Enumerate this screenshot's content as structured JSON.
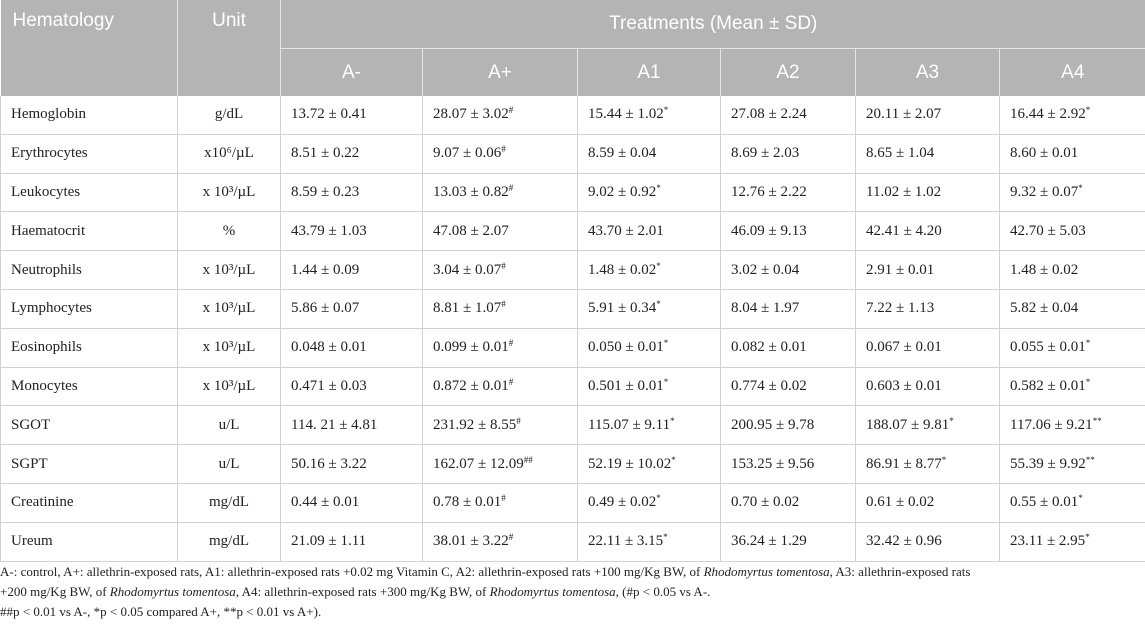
{
  "table": {
    "header": {
      "hematology": "Hematology",
      "unit": "Unit",
      "treatments": "Treatments (Mean ± SD)",
      "groups": [
        "A-",
        "A+",
        "A1",
        "A2",
        "A3",
        "A4"
      ]
    },
    "rows": [
      {
        "name": "Hemoglobin",
        "unit": "g/dL",
        "values": [
          {
            "v": "13.72 ± 0.41",
            "s": ""
          },
          {
            "v": "28.07 ± 3.02",
            "s": "#"
          },
          {
            "v": "15.44 ± 1.02",
            "s": "*"
          },
          {
            "v": "27.08 ± 2.24",
            "s": ""
          },
          {
            "v": "20.11 ± 2.07",
            "s": ""
          },
          {
            "v": "16.44 ± 2.92",
            "s": "*"
          }
        ]
      },
      {
        "name": "Erythrocytes",
        "unit": "x10⁶/µL",
        "values": [
          {
            "v": "8.51 ± 0.22",
            "s": ""
          },
          {
            "v": "9.07 ± 0.06",
            "s": "#"
          },
          {
            "v": "8.59 ± 0.04",
            "s": ""
          },
          {
            "v": "8.69 ± 2.03",
            "s": ""
          },
          {
            "v": "8.65 ± 1.04",
            "s": ""
          },
          {
            "v": "8.60 ± 0.01",
            "s": ""
          }
        ]
      },
      {
        "name": "Leukocytes",
        "unit": "x 10³/µL",
        "values": [
          {
            "v": "8.59 ± 0.23",
            "s": ""
          },
          {
            "v": "13.03 ± 0.82",
            "s": "#"
          },
          {
            "v": "9.02 ± 0.92",
            "s": "*"
          },
          {
            "v": "12.76 ± 2.22",
            "s": ""
          },
          {
            "v": "11.02 ± 1.02",
            "s": ""
          },
          {
            "v": "9.32 ± 0.07",
            "s": "*"
          }
        ]
      },
      {
        "name": "Haematocrit",
        "unit": "%",
        "values": [
          {
            "v": "43.79 ± 1.03",
            "s": ""
          },
          {
            "v": "47.08 ± 2.07",
            "s": ""
          },
          {
            "v": "43.70 ± 2.01",
            "s": ""
          },
          {
            "v": "46.09 ± 9.13",
            "s": ""
          },
          {
            "v": "42.41 ± 4.20",
            "s": ""
          },
          {
            "v": "42.70 ± 5.03",
            "s": ""
          }
        ]
      },
      {
        "name": "Neutrophils",
        "unit": "x 10³/µL",
        "values": [
          {
            "v": "1.44 ± 0.09",
            "s": ""
          },
          {
            "v": "3.04 ± 0.07",
            "s": "#"
          },
          {
            "v": "1.48 ± 0.02",
            "s": "*"
          },
          {
            "v": "3.02 ± 0.04",
            "s": ""
          },
          {
            "v": "2.91 ± 0.01",
            "s": ""
          },
          {
            "v": "1.48 ± 0.02",
            "s": ""
          }
        ]
      },
      {
        "name": "Lymphocytes",
        "unit": "x 10³/µL",
        "values": [
          {
            "v": "5.86 ± 0.07",
            "s": ""
          },
          {
            "v": "8.81 ± 1.07",
            "s": "#"
          },
          {
            "v": "5.91 ± 0.34",
            "s": "*"
          },
          {
            "v": "8.04 ± 1.97",
            "s": ""
          },
          {
            "v": "7.22 ± 1.13",
            "s": ""
          },
          {
            "v": "5.82 ± 0.04",
            "s": ""
          }
        ]
      },
      {
        "name": "Eosinophils",
        "unit": "x 10³/µL",
        "values": [
          {
            "v": "0.048 ± 0.01",
            "s": ""
          },
          {
            "v": "0.099 ± 0.01",
            "s": "#"
          },
          {
            "v": "0.050 ± 0.01",
            "s": "*"
          },
          {
            "v": "0.082 ± 0.01",
            "s": ""
          },
          {
            "v": "0.067 ± 0.01",
            "s": ""
          },
          {
            "v": "0.055 ± 0.01",
            "s": "*"
          }
        ]
      },
      {
        "name": "Monocytes",
        "unit": "x 10³/µL",
        "values": [
          {
            "v": "0.471 ± 0.03",
            "s": ""
          },
          {
            "v": "0.872 ± 0.01",
            "s": "#"
          },
          {
            "v": "0.501 ± 0.01",
            "s": "*"
          },
          {
            "v": "0.774 ± 0.02",
            "s": ""
          },
          {
            "v": "0.603 ± 0.01",
            "s": ""
          },
          {
            "v": "0.582 ± 0.01",
            "s": "*"
          }
        ]
      },
      {
        "name": "SGOT",
        "unit": "u/L",
        "values": [
          {
            "v": "114. 21 ± 4.81",
            "s": ""
          },
          {
            "v": "231.92 ± 8.55",
            "s": "#"
          },
          {
            "v": "115.07 ± 9.11",
            "s": "*"
          },
          {
            "v": "200.95 ± 9.78",
            "s": ""
          },
          {
            "v": "188.07 ± 9.81",
            "s": "*"
          },
          {
            "v": "117.06 ± 9.21",
            "s": "**"
          }
        ]
      },
      {
        "name": "SGPT",
        "unit": "u/L",
        "values": [
          {
            "v": "50.16 ± 3.22",
            "s": ""
          },
          {
            "v": "162.07 ± 12.09",
            "s": "##"
          },
          {
            "v": "52.19 ± 10.02",
            "s": "*"
          },
          {
            "v": "153.25 ± 9.56",
            "s": ""
          },
          {
            "v": "86.91 ± 8.77",
            "s": "*"
          },
          {
            "v": "55.39 ± 9.92",
            "s": "**"
          }
        ]
      },
      {
        "name": "Creatinine",
        "unit": "mg/dL",
        "values": [
          {
            "v": "0.44 ± 0.01",
            "s": ""
          },
          {
            "v": "0.78 ± 0.01",
            "s": "#"
          },
          {
            "v": "0.49 ± 0.02",
            "s": "*"
          },
          {
            "v": "0.70 ± 0.02",
            "s": ""
          },
          {
            "v": "0.61 ± 0.02",
            "s": ""
          },
          {
            "v": "0.55 ± 0.01",
            "s": "*"
          }
        ]
      },
      {
        "name": "Ureum",
        "unit": "mg/dL",
        "values": [
          {
            "v": "21.09 ± 1.11",
            "s": ""
          },
          {
            "v": "38.01 ± 3.22",
            "s": "#"
          },
          {
            "v": "22.11 ± 3.15",
            "s": "*"
          },
          {
            "v": "36.24 ± 1.29",
            "s": ""
          },
          {
            "v": "32.42 ± 0.96",
            "s": ""
          },
          {
            "v": "23.11 ± 2.95",
            "s": "*"
          }
        ]
      }
    ]
  },
  "footnote": {
    "line1": "A-: control, A+: allethrin-exposed rats, A1: allethrin-exposed rats +0.02 mg Vitamin C, A2: allethrin-exposed rats +100 mg/Kg BW, of Rhodomyrtus tomentosa, A3: allethrin-exposed rats",
    "line2": "+200 mg/Kg BW, of Rhodomyrtus tomentosa, A4: allethrin-exposed rats +300 mg/Kg BW, of Rhodomyrtus tomentosa, (#p < 0.05 vs A-.",
    "line3": "##p < 0.01 vs A-, *p < 0.05 compared A+, **p < 0.01 vs A+)."
  }
}
